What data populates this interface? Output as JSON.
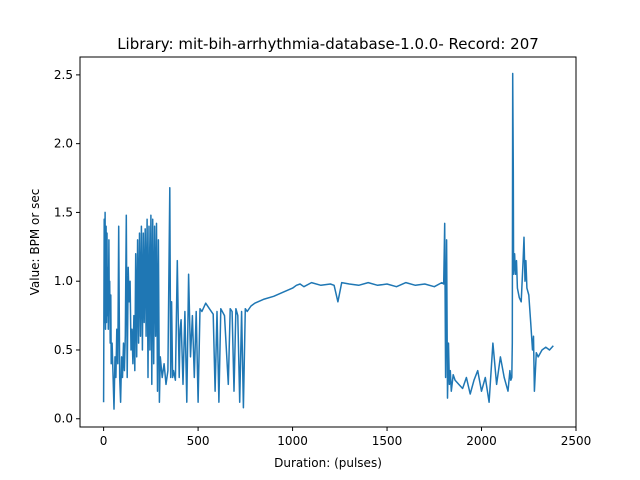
{
  "chart_data": {
    "type": "line",
    "title": "Library: mit-bih-arrhythmia-database-1.0.0- Record: 207",
    "xlabel": "Duration: (pulses)",
    "ylabel": "Value: BPM or sec",
    "xlim": [
      -125,
      2500
    ],
    "ylim": [
      -0.06,
      2.63
    ],
    "xticks": [
      0,
      500,
      1000,
      1500,
      2000,
      2500
    ],
    "yticks": [
      0.0,
      0.5,
      1.0,
      1.5,
      2.0,
      2.5
    ],
    "xtick_labels": [
      "0",
      "500",
      "1000",
      "1500",
      "2000",
      "2500"
    ],
    "ytick_labels": [
      "0.0",
      "0.5",
      "1.0",
      "1.5",
      "2.0",
      "2.5"
    ],
    "grid": false,
    "legend": "none",
    "series": [
      {
        "color": "#1f77b4",
        "x": [
          0,
          3,
          5,
          8,
          10,
          13,
          15,
          18,
          20,
          22,
          25,
          28,
          30,
          32,
          35,
          38,
          40,
          45,
          50,
          55,
          60,
          65,
          70,
          75,
          80,
          85,
          90,
          95,
          100,
          105,
          110,
          115,
          120,
          125,
          130,
          135,
          140,
          145,
          150,
          155,
          160,
          165,
          170,
          175,
          180,
          185,
          190,
          195,
          200,
          205,
          210,
          215,
          220,
          225,
          230,
          235,
          240,
          245,
          250,
          255,
          260,
          265,
          270,
          275,
          280,
          285,
          290,
          295,
          300,
          310,
          320,
          330,
          340,
          350,
          355,
          360,
          365,
          370,
          380,
          390,
          400,
          405,
          410,
          420,
          430,
          440,
          450,
          460,
          470,
          480,
          490,
          500,
          510,
          520,
          540,
          560,
          580,
          590,
          600,
          610,
          620,
          640,
          660,
          670,
          680,
          690,
          700,
          710,
          720,
          730,
          740,
          750,
          760,
          780,
          800,
          850,
          900,
          950,
          1000,
          1020,
          1040,
          1060,
          1100,
          1150,
          1200,
          1220,
          1240,
          1260,
          1300,
          1350,
          1400,
          1450,
          1500,
          1550,
          1600,
          1650,
          1700,
          1750,
          1790,
          1800,
          1805,
          1810,
          1815,
          1820,
          1825,
          1830,
          1835,
          1840,
          1850,
          1860,
          1880,
          1900,
          1920,
          1940,
          1960,
          1980,
          2000,
          2020,
          2040,
          2060,
          2080,
          2100,
          2120,
          2140,
          2150,
          2155,
          2160,
          2163,
          2165,
          2168,
          2170,
          2175,
          2180,
          2185,
          2190,
          2200,
          2210,
          2220,
          2225,
          2230,
          2235,
          2240,
          2250,
          2260,
          2270,
          2275,
          2280,
          2290,
          2300,
          2320,
          2340,
          2360,
          2380
        ],
        "y": [
          0.12,
          1.45,
          0.7,
          1.5,
          0.65,
          1.4,
          0.7,
          1.35,
          0.75,
          1.1,
          0.65,
          1.3,
          0.8,
          1.0,
          0.55,
          0.9,
          0.4,
          0.55,
          0.3,
          0.07,
          0.45,
          0.3,
          0.65,
          0.4,
          1.4,
          0.3,
          0.12,
          0.45,
          0.3,
          0.55,
          0.35,
          0.6,
          1.48,
          0.3,
          1.1,
          0.85,
          1.0,
          0.5,
          0.65,
          0.4,
          0.75,
          0.35,
          1.2,
          0.45,
          1.3,
          0.55,
          1.35,
          0.6,
          1.4,
          0.5,
          1.35,
          0.7,
          1.38,
          0.6,
          1.45,
          0.3,
          1.4,
          0.5,
          1.48,
          0.25,
          1.45,
          0.4,
          1.4,
          0.6,
          1.42,
          0.2,
          1.3,
          0.12,
          0.45,
          0.3,
          0.4,
          0.25,
          0.35,
          1.68,
          0.3,
          0.85,
          0.3,
          0.35,
          0.28,
          1.15,
          0.3,
          0.65,
          0.72,
          0.25,
          0.78,
          0.12,
          1.05,
          0.45,
          0.75,
          0.3,
          0.78,
          0.12,
          0.8,
          0.78,
          0.84,
          0.8,
          0.76,
          0.2,
          0.78,
          0.12,
          0.8,
          0.75,
          0.25,
          0.8,
          0.78,
          0.2,
          0.8,
          0.75,
          0.12,
          0.78,
          0.08,
          0.8,
          0.78,
          0.82,
          0.84,
          0.87,
          0.89,
          0.92,
          0.95,
          0.97,
          0.98,
          0.96,
          0.99,
          0.97,
          0.98,
          0.97,
          0.85,
          0.99,
          0.98,
          0.97,
          0.99,
          0.97,
          0.98,
          0.96,
          0.99,
          0.97,
          0.98,
          0.96,
          0.99,
          0.98,
          1.42,
          0.3,
          1.3,
          0.15,
          0.55,
          0.25,
          0.35,
          0.2,
          0.32,
          0.28,
          0.25,
          0.22,
          0.3,
          0.18,
          0.28,
          0.35,
          0.2,
          0.3,
          0.12,
          0.55,
          0.25,
          0.45,
          0.3,
          0.2,
          0.35,
          0.28,
          0.3,
          0.55,
          2.51,
          1.8,
          1.05,
          1.2,
          1.05,
          1.15,
          0.95,
          0.88,
          0.85,
          1.15,
          1.32,
          1.0,
          1.15,
          0.95,
          0.9,
          0.7,
          0.5,
          0.6,
          0.2,
          0.48,
          0.45,
          0.5,
          0.52,
          0.5,
          0.53
        ]
      }
    ]
  }
}
